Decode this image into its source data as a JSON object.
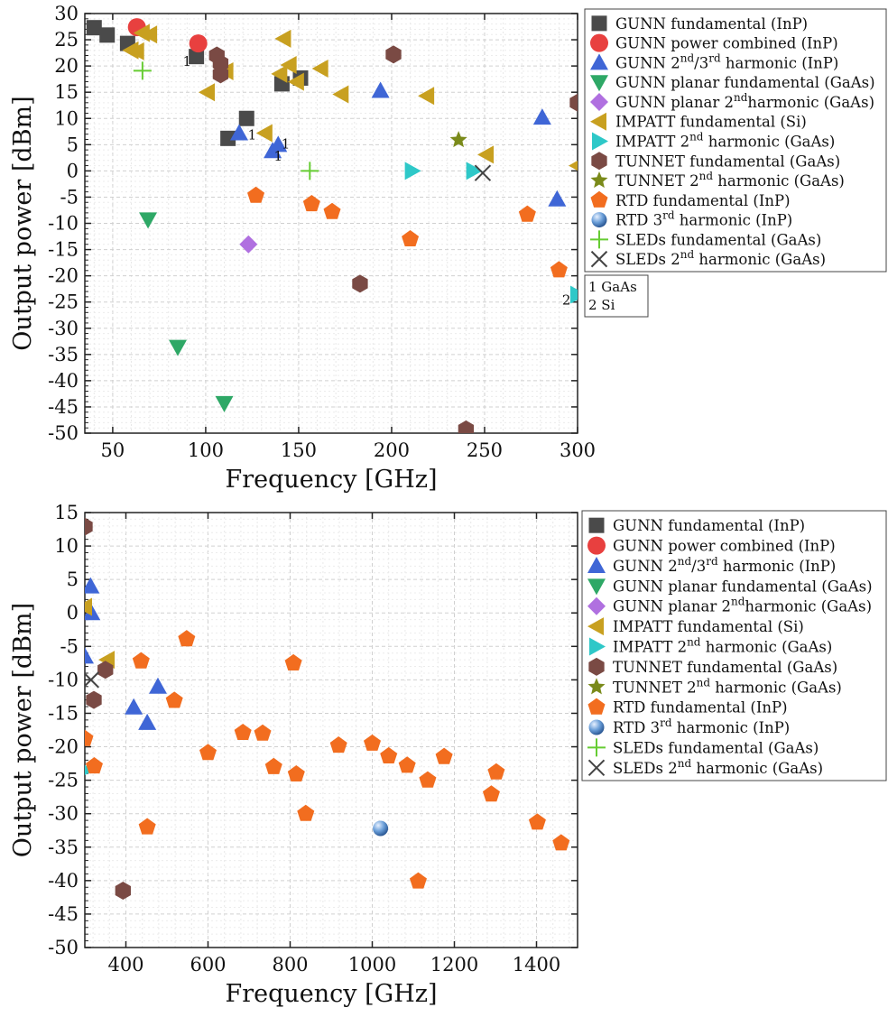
{
  "legend": [
    {
      "key": "gunn_fund",
      "name": "GUNN fundamental (InP)",
      "name_parts": [
        [
          "GUNN fundamental (InP)",
          ""
        ]
      ],
      "color": "#4a4a4a",
      "marker": "square"
    },
    {
      "key": "gunn_comb",
      "name": "GUNN power combined (InP)",
      "name_parts": [
        [
          "GUNN power combined (InP)",
          ""
        ]
      ],
      "color": "#e8403f",
      "marker": "circle"
    },
    {
      "key": "gunn_harm",
      "name": "GUNN 2nd/3rd harmonic (InP)",
      "name_parts": [
        [
          "GUNN 2",
          ""
        ],
        [
          "nd",
          "sup"
        ],
        [
          "/3",
          ""
        ],
        [
          "rd",
          "sup"
        ],
        [
          " harmonic (InP)",
          ""
        ]
      ],
      "color": "#3f66d6",
      "marker": "triangle-up"
    },
    {
      "key": "gunn_planar",
      "name": "GUNN planar fundamental (GaAs)",
      "name_parts": [
        [
          "GUNN planar fundamental (GaAs)",
          ""
        ]
      ],
      "color": "#2ea866",
      "marker": "triangle-down"
    },
    {
      "key": "gunn_planar2",
      "name": "GUNN planar 2ndharmonic (GaAs)",
      "name_parts": [
        [
          "GUNN planar 2",
          ""
        ],
        [
          "nd",
          "sup"
        ],
        [
          "harmonic (GaAs)",
          ""
        ]
      ],
      "color": "#b070e0",
      "marker": "diamond"
    },
    {
      "key": "impatt_fund",
      "name": "IMPATT fundamental (Si)",
      "name_parts": [
        [
          "IMPATT fundamental (Si)",
          ""
        ]
      ],
      "color": "#c8a020",
      "marker": "triangle-left"
    },
    {
      "key": "impatt2",
      "name": "IMPATT 2nd harmonic (GaAs)",
      "name_parts": [
        [
          "IMPATT 2",
          ""
        ],
        [
          "nd",
          "sup"
        ],
        [
          " harmonic (GaAs)",
          ""
        ]
      ],
      "color": "#2ec8c8",
      "marker": "triangle-right"
    },
    {
      "key": "tunnet_fund",
      "name": "TUNNET fundamental (GaAs)",
      "name_parts": [
        [
          "TUNNET fundamental (GaAs)",
          ""
        ]
      ],
      "color": "#7a4a44",
      "marker": "hexagon"
    },
    {
      "key": "tunnet2",
      "name": "TUNNET 2nd harmonic (GaAs)",
      "name_parts": [
        [
          "TUNNET 2",
          ""
        ],
        [
          "nd",
          "sup"
        ],
        [
          " harmonic (GaAs)",
          ""
        ]
      ],
      "color": "#7a8a1a",
      "marker": "star"
    },
    {
      "key": "rtd_fund",
      "name": "RTD fundamental (InP)",
      "name_parts": [
        [
          "RTD fundamental (InP)",
          ""
        ]
      ],
      "color": "#f26d1f",
      "marker": "pentagon"
    },
    {
      "key": "rtd3",
      "name": "RTD 3rd harmonic (InP)",
      "name_parts": [
        [
          "RTD 3",
          ""
        ],
        [
          "rd",
          "sup"
        ],
        [
          " harmonic (InP)",
          ""
        ]
      ],
      "color": "#6a9ed8",
      "marker": "sphere"
    },
    {
      "key": "sled_fund",
      "name": "SLEDs fundamental (GaAs)",
      "name_parts": [
        [
          "SLEDs fundamental (GaAs)",
          ""
        ]
      ],
      "color": "#66cc33",
      "marker": "plus"
    },
    {
      "key": "sled2",
      "name": "SLEDs 2nd harmonic (GaAs)",
      "name_parts": [
        [
          "SLEDs 2",
          ""
        ],
        [
          "nd",
          "sup"
        ],
        [
          " harmonic (GaAs)",
          ""
        ]
      ],
      "color": "#444444",
      "marker": "cross"
    }
  ],
  "note_legend": [
    "1 GaAs",
    "2 Si"
  ],
  "chart_data": [
    {
      "type": "scatter",
      "xlabel": "Frequency [GHz]",
      "ylabel": "Output power [dBm]",
      "xlim": [
        35,
        300
      ],
      "ylim": [
        -50,
        30
      ],
      "xticks": [
        50,
        100,
        150,
        200,
        250,
        300
      ],
      "yticks": [
        30,
        25,
        20,
        15,
        10,
        5,
        0,
        -5,
        -10,
        -15,
        -20,
        -25,
        -30,
        -35,
        -40,
        -45,
        -50
      ],
      "grid": true,
      "legend_position": "right",
      "series": [
        {
          "key": "gunn_fund",
          "points": [
            [
              40,
              27.3
            ],
            [
              47,
              25.9
            ],
            [
              58,
              24.3
            ],
            [
              95,
              21.8
            ],
            [
              112,
              6.2
            ],
            [
              122,
              10
            ],
            [
              141,
              16.6
            ],
            [
              151,
              17.7
            ]
          ]
        },
        {
          "key": "gunn_comb",
          "points": [
            [
              63,
              27.4
            ],
            [
              96,
              24.3
            ]
          ]
        },
        {
          "key": "gunn_harm",
          "points": [
            [
              118,
              7.2
            ],
            [
              136,
              3.8
            ],
            [
              139,
              5
            ],
            [
              194,
              15.3
            ],
            [
              281,
              10.2
            ],
            [
              289,
              -5.4
            ]
          ]
        },
        {
          "key": "gunn_planar",
          "points": [
            [
              69,
              -9.3
            ],
            [
              85,
              -33.6
            ],
            [
              110,
              -44.3
            ]
          ]
        },
        {
          "key": "gunn_planar2",
          "points": [
            [
              123,
              -14
            ]
          ]
        },
        {
          "key": "impatt_fund",
          "points": [
            [
              60,
              23
            ],
            [
              63,
              22.8
            ],
            [
              66,
              26.3
            ],
            [
              70,
              26
            ],
            [
              101,
              15
            ],
            [
              111,
              19
            ],
            [
              132,
              7.2
            ],
            [
              140,
              18.5
            ],
            [
              142,
              25.2
            ],
            [
              145,
              20.2
            ],
            [
              149,
              17
            ],
            [
              162,
              19.5
            ],
            [
              173,
              14.6
            ],
            [
              219,
              14.3
            ],
            [
              251,
              3.1
            ],
            [
              300,
              1
            ]
          ]
        },
        {
          "key": "impatt2",
          "points": [
            [
              211,
              0
            ],
            [
              244,
              0
            ],
            [
              300,
              -23.6
            ]
          ]
        },
        {
          "key": "tunnet_fund",
          "points": [
            [
              106,
              22
            ],
            [
              108,
              20.5
            ],
            [
              108,
              18.4
            ],
            [
              183,
              -21.5
            ],
            [
              201,
              22.2
            ],
            [
              240,
              -49.3
            ],
            [
              300,
              13
            ]
          ]
        },
        {
          "key": "tunnet2",
          "points": [
            [
              236,
              5.9
            ]
          ]
        },
        {
          "key": "rtd_fund",
          "points": [
            [
              127,
              -4.7
            ],
            [
              157,
              -6.3
            ],
            [
              168,
              -7.8
            ],
            [
              210,
              -13
            ],
            [
              273,
              -8.3
            ],
            [
              290,
              -18.9
            ]
          ]
        },
        {
          "key": "rtd3",
          "points": []
        },
        {
          "key": "sled_fund",
          "points": [
            [
              66,
              19.1
            ],
            [
              156,
              0
            ]
          ]
        },
        {
          "key": "sled2",
          "points": [
            [
              249,
              -0.4
            ]
          ]
        }
      ],
      "annotations": [
        {
          "text": "1",
          "x": 90,
          "y": 20
        },
        {
          "text": "1",
          "x": 125,
          "y": 6
        },
        {
          "text": "1",
          "x": 143,
          "y": 4.3
        },
        {
          "text": "1",
          "x": 139,
          "y": 2
        },
        {
          "text": "2",
          "x": 294,
          "y": -25.5
        }
      ]
    },
    {
      "type": "scatter",
      "xlabel": "Frequency [GHz]",
      "ylabel": "Output power [dBm]",
      "xlim": [
        300,
        1500
      ],
      "ylim": [
        -50,
        15
      ],
      "xticks": [
        400,
        600,
        800,
        1000,
        1200,
        1400
      ],
      "yticks": [
        15,
        10,
        5,
        0,
        -5,
        -10,
        -15,
        -20,
        -25,
        -30,
        -35,
        -40,
        -45,
        -50
      ],
      "grid": true,
      "legend_position": "right",
      "series": [
        {
          "key": "gunn_fund",
          "points": []
        },
        {
          "key": "gunn_comb",
          "points": []
        },
        {
          "key": "gunn_harm",
          "points": [
            [
              300,
              -6.5
            ],
            [
              314,
              4
            ],
            [
              316,
              0
            ],
            [
              419,
              -14.1
            ],
            [
              452,
              -16.4
            ],
            [
              478,
              -11
            ]
          ]
        },
        {
          "key": "gunn_planar",
          "points": []
        },
        {
          "key": "gunn_planar2",
          "points": []
        },
        {
          "key": "impatt_fund",
          "points": [
            [
              300,
              0.9
            ],
            [
              355,
              -7
            ]
          ]
        },
        {
          "key": "impatt2",
          "points": [
            [
              300,
              -23.5
            ]
          ]
        },
        {
          "key": "tunnet_fund",
          "points": [
            [
              300,
              12.9
            ],
            [
              322,
              -13
            ],
            [
              350,
              -8.5
            ],
            [
              393,
              -41.5
            ]
          ]
        },
        {
          "key": "tunnet2",
          "points": []
        },
        {
          "key": "rtd_fund",
          "points": [
            [
              300,
              -18.8
            ],
            [
              323,
              -22.9
            ],
            [
              437,
              -7.2
            ],
            [
              452,
              -32
            ],
            [
              518,
              -13.1
            ],
            [
              548,
              -3.9
            ],
            [
              600,
              -20.9
            ],
            [
              685,
              -17.9
            ],
            [
              733,
              -18
            ],
            [
              760,
              -23
            ],
            [
              808,
              -7.5
            ],
            [
              815,
              -24.1
            ],
            [
              838,
              -30
            ],
            [
              918,
              -19.8
            ],
            [
              1000,
              -19.5
            ],
            [
              1040,
              -21.4
            ],
            [
              1085,
              -22.8
            ],
            [
              1112,
              -40.1
            ],
            [
              1135,
              -25
            ],
            [
              1175,
              -21.5
            ],
            [
              1290,
              -27.1
            ],
            [
              1302,
              -23.8
            ],
            [
              1402,
              -31.3
            ],
            [
              1460,
              -34.4
            ]
          ]
        },
        {
          "key": "rtd3",
          "points": [
            [
              1020,
              -32.2
            ]
          ]
        },
        {
          "key": "sled_fund",
          "points": []
        },
        {
          "key": "sled2",
          "points": [
            [
              315,
              -10
            ]
          ]
        }
      ],
      "annotations": []
    }
  ]
}
